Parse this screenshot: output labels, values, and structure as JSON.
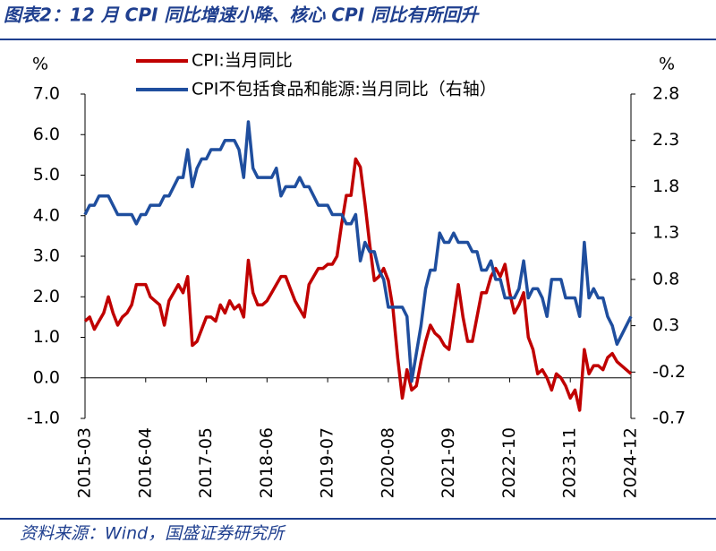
{
  "chart_data": {
    "type": "line",
    "title": "图表2：12 月 CPI 同比增速小降、核心 CPI 同比有所回升",
    "source": "资料来源：Wind，国盛证券研究所",
    "y_unit": "%",
    "y2_unit": "%",
    "categories": [
      "2015-03",
      null,
      null,
      null,
      null,
      null,
      null,
      null,
      null,
      null,
      null,
      null,
      null,
      "2016-04",
      null,
      null,
      null,
      null,
      null,
      null,
      null,
      null,
      null,
      null,
      null,
      null,
      "2017-05",
      null,
      null,
      null,
      null,
      null,
      null,
      null,
      null,
      null,
      null,
      null,
      null,
      "2018-06",
      null,
      null,
      null,
      null,
      null,
      null,
      null,
      null,
      null,
      null,
      null,
      null,
      "2019-07",
      null,
      null,
      null,
      null,
      null,
      null,
      null,
      null,
      null,
      null,
      null,
      null,
      "2020-08",
      null,
      null,
      null,
      null,
      null,
      null,
      null,
      null,
      null,
      null,
      null,
      null,
      "2021-09",
      null,
      null,
      null,
      null,
      null,
      null,
      null,
      null,
      null,
      null,
      null,
      null,
      "2022-10",
      null,
      null,
      null,
      null,
      null,
      null,
      null,
      null,
      null,
      null,
      null,
      null,
      "2023-11",
      null,
      null,
      null,
      null,
      null,
      null,
      null,
      null,
      null,
      null,
      null,
      null,
      "2024-12"
    ],
    "series": [
      {
        "name": "CPI:当月同比",
        "color": "#c00000",
        "axis": "y",
        "values": [
          1.4,
          1.5,
          1.2,
          1.4,
          1.6,
          2.0,
          1.6,
          1.3,
          1.5,
          1.6,
          1.8,
          2.3,
          2.3,
          2.3,
          2.0,
          1.9,
          1.8,
          1.3,
          1.9,
          2.1,
          2.3,
          2.1,
          2.5,
          0.8,
          0.9,
          1.2,
          1.5,
          1.5,
          1.4,
          1.8,
          1.6,
          1.9,
          1.7,
          1.8,
          1.5,
          2.9,
          2.1,
          1.8,
          1.8,
          1.9,
          2.1,
          2.3,
          2.5,
          2.5,
          2.2,
          1.9,
          1.7,
          1.5,
          2.3,
          2.5,
          2.7,
          2.7,
          2.8,
          2.8,
          3.0,
          3.8,
          4.5,
          4.5,
          5.4,
          5.2,
          4.3,
          3.3,
          2.4,
          2.5,
          2.7,
          2.4,
          1.7,
          0.5,
          -0.5,
          0.2,
          -0.3,
          -0.2,
          0.4,
          0.9,
          1.3,
          1.1,
          1.0,
          0.8,
          0.7,
          1.5,
          2.3,
          1.5,
          0.9,
          0.9,
          1.5,
          2.1,
          2.1,
          2.5,
          2.7,
          2.5,
          2.8,
          2.1,
          1.6,
          1.8,
          2.1,
          1.0,
          0.7,
          0.1,
          0.2,
          0.0,
          -0.3,
          0.1,
          0.0,
          -0.2,
          -0.5,
          -0.3,
          -0.8,
          0.7,
          0.1,
          0.3,
          0.3,
          0.2,
          0.5,
          0.6,
          0.4,
          0.3,
          0.2,
          0.1
        ]
      },
      {
        "name": "CPI不包括食品和能源:当月同比（右轴）",
        "color": "#1f4e9e",
        "axis": "y2",
        "values": [
          1.5,
          1.6,
          1.6,
          1.7,
          1.7,
          1.7,
          1.6,
          1.5,
          1.5,
          1.5,
          1.5,
          1.4,
          1.5,
          1.5,
          1.6,
          1.6,
          1.6,
          1.7,
          1.7,
          1.8,
          1.9,
          1.9,
          2.2,
          1.8,
          2.0,
          2.1,
          2.1,
          2.2,
          2.2,
          2.2,
          2.3,
          2.3,
          2.3,
          2.2,
          1.9,
          2.5,
          2.0,
          1.9,
          1.9,
          1.9,
          1.9,
          2.0,
          1.7,
          1.8,
          1.8,
          1.8,
          1.9,
          1.8,
          1.8,
          1.7,
          1.6,
          1.6,
          1.6,
          1.5,
          1.5,
          1.5,
          1.4,
          1.4,
          1.5,
          1.0,
          1.2,
          1.1,
          1.1,
          0.9,
          0.8,
          0.5,
          0.5,
          0.5,
          0.5,
          0.4,
          -0.3,
          0.0,
          0.3,
          0.7,
          0.9,
          0.9,
          1.3,
          1.2,
          1.2,
          1.3,
          1.2,
          1.2,
          1.2,
          1.1,
          1.1,
          0.9,
          0.9,
          1.0,
          0.8,
          0.8,
          0.6,
          0.6,
          0.6,
          0.7,
          1.0,
          0.6,
          0.7,
          0.7,
          0.6,
          0.4,
          0.8,
          0.8,
          0.8,
          0.6,
          0.6,
          0.6,
          0.4,
          1.2,
          0.6,
          0.7,
          0.6,
          0.6,
          0.4,
          0.3,
          0.1,
          0.2,
          0.3,
          0.4
        ]
      }
    ],
    "ylim": [
      -1,
      7
    ],
    "yticks": [
      {
        "value": -1,
        "label": "-1.0"
      },
      {
        "value": 0,
        "label": "0.0"
      },
      {
        "value": 1,
        "label": "1.0"
      },
      {
        "value": 2,
        "label": "2.0"
      },
      {
        "value": 3,
        "label": "3.0"
      },
      {
        "value": 4,
        "label": "4.0"
      },
      {
        "value": 5,
        "label": "5.0"
      },
      {
        "value": 6,
        "label": "6.0"
      },
      {
        "value": 7,
        "label": "7.0"
      }
    ],
    "y2lim": [
      -0.7,
      2.8
    ],
    "y2ticks": [
      -0.7,
      -0.2,
      0.3,
      0.8,
      1.3,
      1.8,
      2.3,
      2.8
    ]
  }
}
